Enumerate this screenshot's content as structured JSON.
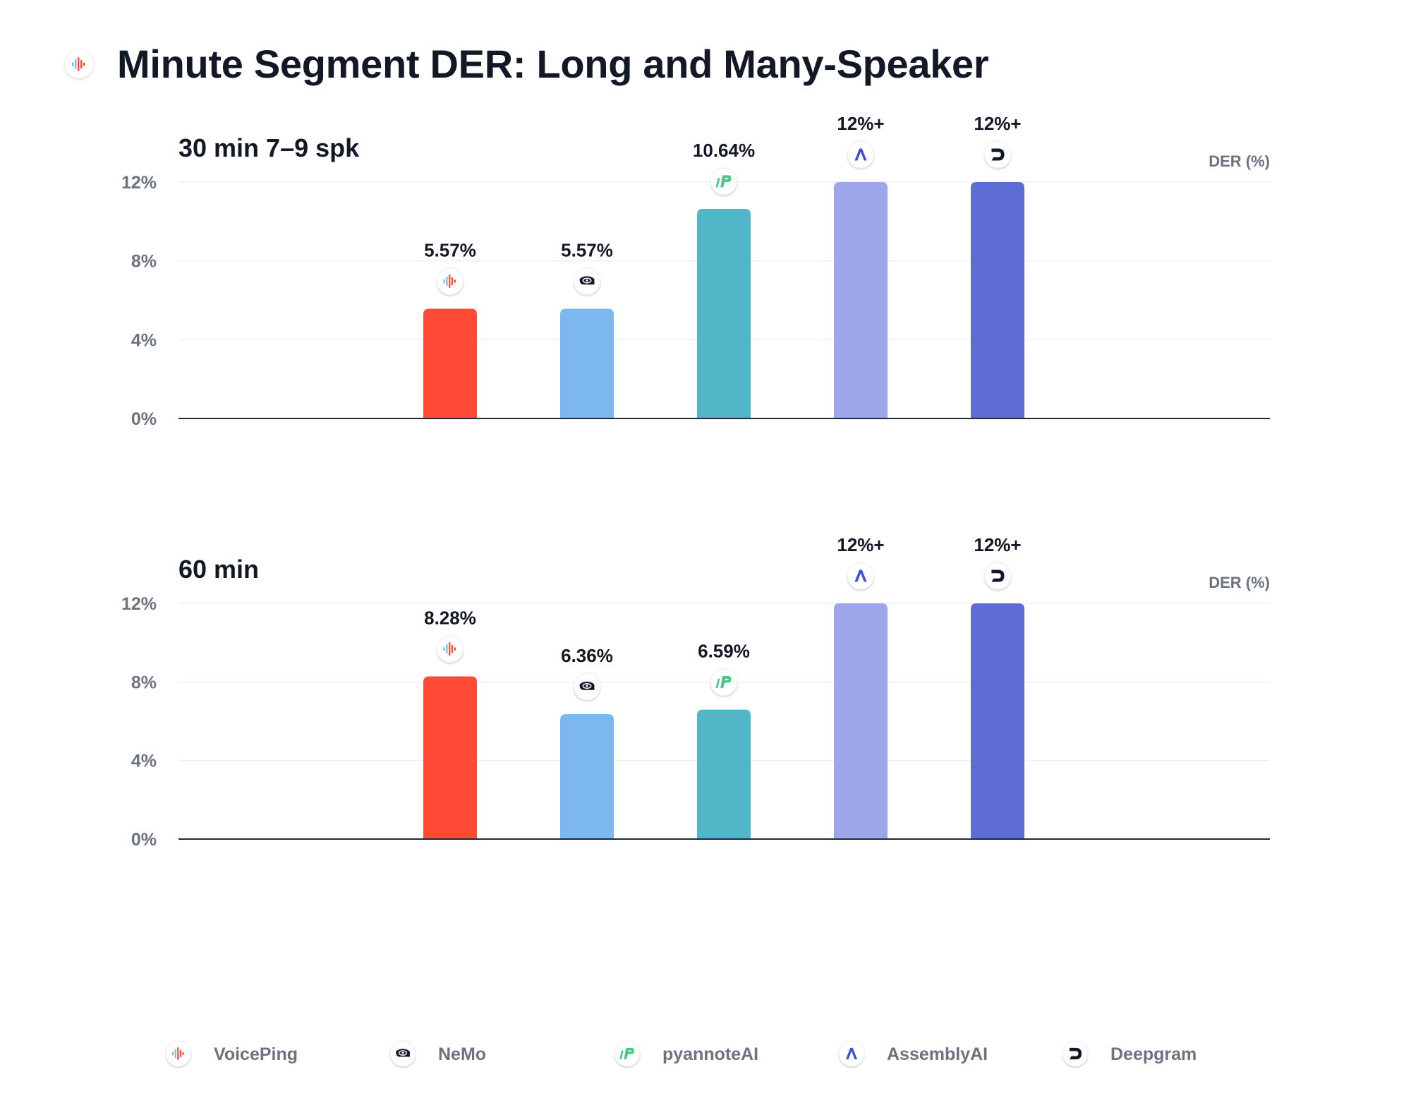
{
  "title": "Minute Segment DER: Long and Many-Speaker",
  "chart_data": [
    {
      "type": "bar",
      "title": "30 min 7–9 spk",
      "ylabel": "DER (%)",
      "ylim": [
        0,
        12
      ],
      "yticks": [
        "0%",
        "4%",
        "8%",
        "12%"
      ],
      "categories": [
        "VoicePing",
        "NeMo",
        "pyannoteAI",
        "AssemblyAI",
        "Deepgram"
      ],
      "values": [
        5.57,
        5.57,
        10.64,
        12,
        12
      ],
      "labels": [
        "5.57%",
        "5.57%",
        "10.64%",
        "12%+",
        "12%+"
      ]
    },
    {
      "type": "bar",
      "title": "60 min",
      "ylabel": "DER (%)",
      "ylim": [
        0,
        12
      ],
      "yticks": [
        "0%",
        "4%",
        "8%",
        "12%"
      ],
      "categories": [
        "VoicePing",
        "NeMo",
        "pyannoteAI",
        "AssemblyAI",
        "Deepgram"
      ],
      "values": [
        8.28,
        6.36,
        6.59,
        12,
        12
      ],
      "labels": [
        "8.28%",
        "6.36%",
        "6.59%",
        "12%+",
        "12%+"
      ]
    }
  ],
  "legend": [
    {
      "label": "VoicePing",
      "icon": "voiceping-icon",
      "color": "#ff4a36"
    },
    {
      "label": "NeMo",
      "icon": "nemo-icon",
      "color": "#7cb8ef"
    },
    {
      "label": "pyannoteAI",
      "icon": "pyannoteai-icon",
      "color": "#52b6c9"
    },
    {
      "label": "AssemblyAI",
      "icon": "assemblyai-icon",
      "color": "#9ca6e9"
    },
    {
      "label": "Deepgram",
      "icon": "deepgram-icon",
      "color": "#5d6dd4"
    }
  ]
}
